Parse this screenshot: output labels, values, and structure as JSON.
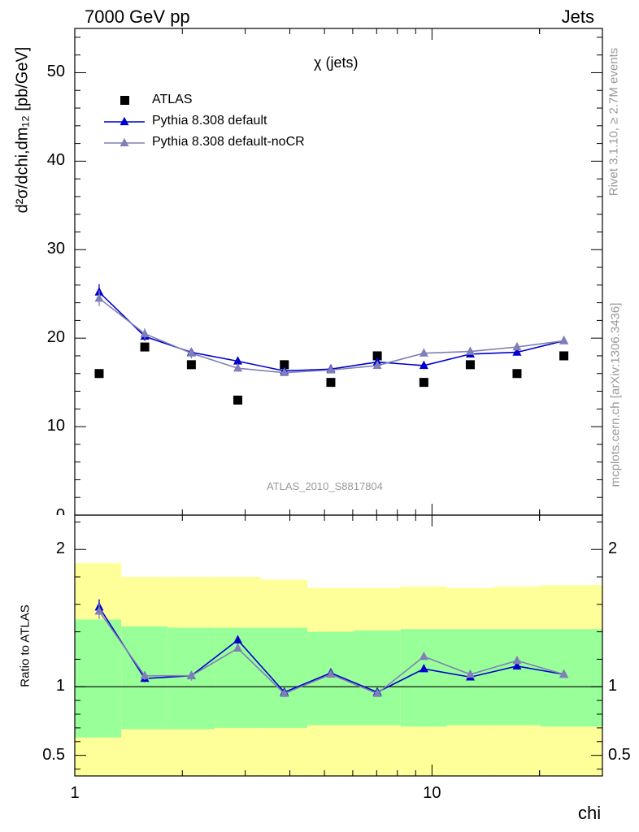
{
  "header": {
    "left": "7000 GeV pp",
    "right": "Jets"
  },
  "side_text": {
    "rivet": "Rivet 3.1.10, ≥ 2.7M events",
    "mcplots": "mcplots.cern.ch [arXiv:1306.3436]"
  },
  "chart_data": {
    "type": "scatter",
    "title": "χ (jets)",
    "analysis_label": "ATLAS_2010_S8817804",
    "xlabel": "chi",
    "ylabel": "d²σ/dchi,dm₁₂ [pb/GeV]",
    "ratio_ylabel": "Ratio to ATLAS",
    "x_scale": "log",
    "xlim": [
      1,
      30
    ],
    "ylim": [
      0,
      55
    ],
    "ratio_ylim": [
      0.35,
      2.25
    ],
    "legend_position": "top-left",
    "x_tick_labels": [
      {
        "v": 1,
        "t": "1"
      },
      {
        "v": 10,
        "t": "10"
      }
    ],
    "y_tick_labels": [
      {
        "v": 10,
        "t": "10"
      },
      {
        "v": 20,
        "t": "20"
      },
      {
        "v": 30,
        "t": "30"
      },
      {
        "v": 40,
        "t": "40"
      },
      {
        "v": 50,
        "t": "50"
      }
    ],
    "ratio_tick_labels": [
      {
        "v": 0.5,
        "t": "0.5"
      },
      {
        "v": 1,
        "t": "1"
      },
      {
        "v": 2,
        "t": "2"
      }
    ],
    "bins": [
      [
        1.0,
        1.35
      ],
      [
        1.35,
        1.82
      ],
      [
        1.82,
        2.46
      ],
      [
        2.46,
        3.32
      ],
      [
        3.32,
        4.48
      ],
      [
        4.48,
        6.05
      ],
      [
        6.05,
        8.17
      ],
      [
        8.17,
        11.0
      ],
      [
        11.0,
        14.9
      ],
      [
        14.9,
        20.1
      ],
      [
        20.1,
        30.0
      ]
    ],
    "x": [
      1.17,
      1.57,
      2.12,
      2.86,
      3.86,
      5.21,
      7.03,
      9.49,
      12.8,
      17.3,
      23.4
    ],
    "series": [
      {
        "name": "ATLAS",
        "color": "#000000",
        "marker": "square",
        "values": [
          16,
          19,
          17,
          13,
          17,
          15,
          18,
          15,
          17,
          16,
          18
        ]
      },
      {
        "name": "Pythia 8.308 default",
        "color": "#0000cc",
        "marker": "triangle",
        "values": [
          25.2,
          20.2,
          18.4,
          17.4,
          16.3,
          16.5,
          17.3,
          16.9,
          18.2,
          18.4,
          19.7
        ],
        "errors": [
          0.9,
          0.5,
          0.4,
          0.4,
          0.3,
          0.2,
          0.2,
          0.2,
          0.2,
          0.2,
          0.2
        ],
        "ratio": [
          1.58,
          1.06,
          1.08,
          1.34,
          0.96,
          1.1,
          0.96,
          1.13,
          1.07,
          1.15,
          1.09
        ]
      },
      {
        "name": "Pythia 8.308 default-noCR",
        "color": "#8080b8",
        "marker": "triangle",
        "values": [
          24.5,
          20.5,
          18.3,
          16.6,
          16.1,
          16.4,
          16.9,
          18.3,
          18.5,
          19.0,
          19.7
        ],
        "errors": [
          0.9,
          0.6,
          0.6,
          0.3,
          0.3,
          0.2,
          0.2,
          0.2,
          0.2,
          0.2,
          0.2
        ],
        "ratio": [
          1.55,
          1.08,
          1.08,
          1.28,
          0.95,
          1.09,
          0.95,
          1.22,
          1.09,
          1.19,
          1.09
        ]
      }
    ],
    "uncertainty_bands": {
      "inner_color": "#99ff99",
      "outer_color": "#ffff99",
      "inner_low": [
        0.63,
        0.69,
        0.69,
        0.7,
        0.7,
        0.72,
        0.72,
        0.71,
        0.72,
        0.72,
        0.71
      ],
      "inner_high": [
        1.49,
        1.44,
        1.43,
        1.43,
        1.43,
        1.4,
        1.41,
        1.42,
        1.42,
        1.42,
        1.42
      ],
      "outer_low": [
        0.35,
        0.35,
        0.35,
        0.35,
        0.35,
        0.35,
        0.35,
        0.35,
        0.35,
        0.35,
        0.35
      ],
      "outer_high": [
        1.9,
        1.8,
        1.8,
        1.8,
        1.78,
        1.72,
        1.72,
        1.73,
        1.72,
        1.73,
        1.74
      ]
    }
  }
}
